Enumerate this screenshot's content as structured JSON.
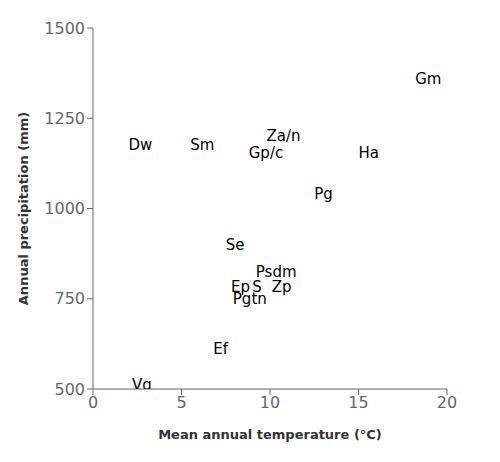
{
  "chart_data": {
    "type": "scatter",
    "xlabel": "Mean annual temperature (°C)",
    "ylabel": "Annual precipitation (mm)",
    "xlim": [
      0,
      20
    ],
    "ylim": [
      500,
      1500
    ],
    "xticks": [
      0,
      5,
      10,
      15,
      20
    ],
    "yticks": [
      500,
      750,
      1000,
      1250,
      1500
    ],
    "color": "#000000",
    "annotations": [
      {
        "text": "Dw",
        "x": 2.0,
        "y": 1175
      },
      {
        "text": "Sm",
        "x": 5.5,
        "y": 1175
      },
      {
        "text": "Za/n",
        "x": 9.8,
        "y": 1200
      },
      {
        "text": "Gp/c",
        "x": 8.8,
        "y": 1155
      },
      {
        "text": "Ha",
        "x": 15.0,
        "y": 1155
      },
      {
        "text": "Gm",
        "x": 18.2,
        "y": 1360
      },
      {
        "text": "Pg",
        "x": 12.5,
        "y": 1040
      },
      {
        "text": "Se",
        "x": 7.5,
        "y": 900
      },
      {
        "text": "Psdm",
        "x": 9.2,
        "y": 825
      },
      {
        "text": "Ep",
        "x": 7.8,
        "y": 783
      },
      {
        "text": "S",
        "x": 9.0,
        "y": 783
      },
      {
        "text": "Zp",
        "x": 10.1,
        "y": 783
      },
      {
        "text": "Pgtn",
        "x": 7.9,
        "y": 748
      },
      {
        "text": "Ef",
        "x": 6.8,
        "y": 610
      },
      {
        "text": "Vg",
        "x": 2.2,
        "y": 510
      }
    ]
  }
}
